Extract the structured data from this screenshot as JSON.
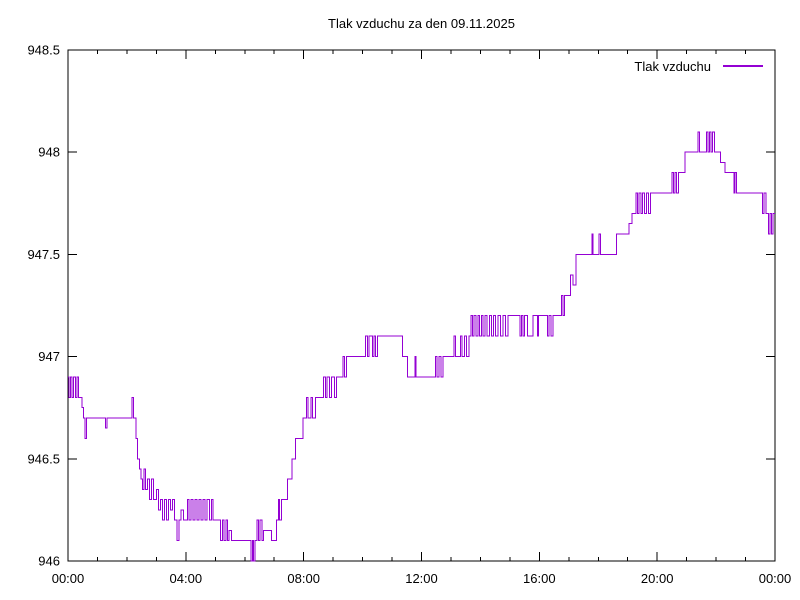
{
  "legend": {
    "label": "Tlak vzduchu"
  },
  "colors": {
    "line": "#9400d3",
    "axis": "#000000",
    "text": "#000000",
    "background": "#ffffff"
  },
  "chart_data": {
    "type": "line",
    "title": "Tlak vzduchu za den 09.11.2025",
    "xlabel": "",
    "ylabel": "",
    "x_unit": "time (hours of day)",
    "y_unit": "hPa",
    "xlim": [
      0,
      24
    ],
    "ylim": [
      946,
      948.5
    ],
    "grid": false,
    "legend_position": "top-right",
    "legend_entries": [
      "Tlak vzduchu"
    ],
    "x_ticks": [
      {
        "t": 0,
        "label": "00:00"
      },
      {
        "t": 4,
        "label": "04:00"
      },
      {
        "t": 8,
        "label": "08:00"
      },
      {
        "t": 12,
        "label": "12:00"
      },
      {
        "t": 16,
        "label": "16:00"
      },
      {
        "t": 20,
        "label": "20:00"
      },
      {
        "t": 24,
        "label": "00:00"
      }
    ],
    "x_minor_tick_every_hours": 1,
    "y_ticks": [
      {
        "v": 946,
        "label": "946"
      },
      {
        "v": 946.5,
        "label": "946.5"
      },
      {
        "v": 947,
        "label": "947"
      },
      {
        "v": 947.5,
        "label": "947.5"
      },
      {
        "v": 948,
        "label": "948"
      },
      {
        "v": 948.5,
        "label": "948.5"
      }
    ],
    "series": [
      {
        "name": "Tlak vzduchu",
        "color": "#9400d3",
        "style": "steps",
        "points": [
          [
            0.0,
            946.9
          ],
          [
            0.04,
            946.8
          ],
          [
            0.08,
            946.9
          ],
          [
            0.13,
            946.8
          ],
          [
            0.18,
            946.9
          ],
          [
            0.25,
            946.8
          ],
          [
            0.3,
            946.9
          ],
          [
            0.35,
            946.8
          ],
          [
            0.48,
            946.75
          ],
          [
            0.53,
            946.7
          ],
          [
            0.58,
            946.6
          ],
          [
            0.62,
            946.7
          ],
          [
            1.28,
            946.65
          ],
          [
            1.33,
            946.7
          ],
          [
            2.17,
            946.8
          ],
          [
            2.22,
            946.7
          ],
          [
            2.3,
            946.6
          ],
          [
            2.36,
            946.5
          ],
          [
            2.42,
            946.45
          ],
          [
            2.48,
            946.4
          ],
          [
            2.53,
            946.35
          ],
          [
            2.58,
            946.45
          ],
          [
            2.63,
            946.35
          ],
          [
            2.7,
            946.4
          ],
          [
            2.76,
            946.3
          ],
          [
            2.83,
            946.4
          ],
          [
            2.9,
            946.3
          ],
          [
            3.0,
            946.35
          ],
          [
            3.07,
            946.25
          ],
          [
            3.14,
            946.3
          ],
          [
            3.2,
            946.2
          ],
          [
            3.27,
            946.3
          ],
          [
            3.34,
            946.2
          ],
          [
            3.41,
            946.3
          ],
          [
            3.48,
            946.25
          ],
          [
            3.55,
            946.3
          ],
          [
            3.62,
            946.2
          ],
          [
            3.7,
            946.1
          ],
          [
            3.76,
            946.2
          ],
          [
            3.83,
            946.25
          ],
          [
            3.92,
            946.2
          ],
          [
            4.05,
            946.3
          ],
          [
            4.11,
            946.2
          ],
          [
            4.17,
            946.3
          ],
          [
            4.24,
            946.2
          ],
          [
            4.31,
            946.3
          ],
          [
            4.38,
            946.2
          ],
          [
            4.45,
            946.3
          ],
          [
            4.52,
            946.2
          ],
          [
            4.58,
            946.3
          ],
          [
            4.65,
            946.2
          ],
          [
            4.72,
            946.3
          ],
          [
            4.8,
            946.2
          ],
          [
            4.87,
            946.3
          ],
          [
            4.93,
            946.2
          ],
          [
            5.18,
            946.1
          ],
          [
            5.24,
            946.2
          ],
          [
            5.3,
            946.1
          ],
          [
            5.36,
            946.2
          ],
          [
            5.42,
            946.1
          ],
          [
            5.47,
            946.15
          ],
          [
            5.55,
            946.1
          ],
          [
            6.22,
            946.0
          ],
          [
            6.26,
            946.1
          ],
          [
            6.3,
            946.0
          ],
          [
            6.35,
            946.1
          ],
          [
            6.42,
            946.2
          ],
          [
            6.47,
            946.1
          ],
          [
            6.52,
            946.2
          ],
          [
            6.58,
            946.1
          ],
          [
            6.64,
            946.15
          ],
          [
            6.9,
            946.1
          ],
          [
            7.08,
            946.2
          ],
          [
            7.14,
            946.3
          ],
          [
            7.18,
            946.2
          ],
          [
            7.24,
            946.3
          ],
          [
            7.45,
            946.4
          ],
          [
            7.6,
            946.5
          ],
          [
            7.72,
            946.6
          ],
          [
            7.98,
            946.7
          ],
          [
            8.1,
            946.8
          ],
          [
            8.15,
            946.7
          ],
          [
            8.25,
            946.8
          ],
          [
            8.3,
            946.7
          ],
          [
            8.4,
            946.8
          ],
          [
            8.68,
            946.9
          ],
          [
            8.74,
            946.8
          ],
          [
            8.8,
            946.9
          ],
          [
            8.87,
            946.8
          ],
          [
            8.95,
            946.9
          ],
          [
            9.05,
            946.8
          ],
          [
            9.12,
            946.9
          ],
          [
            9.33,
            947.0
          ],
          [
            9.39,
            946.9
          ],
          [
            9.45,
            947.0
          ],
          [
            10.1,
            947.1
          ],
          [
            10.16,
            947.0
          ],
          [
            10.21,
            947.1
          ],
          [
            10.33,
            947.0
          ],
          [
            10.39,
            947.1
          ],
          [
            10.44,
            947.0
          ],
          [
            10.5,
            947.1
          ],
          [
            11.35,
            947.0
          ],
          [
            11.52,
            946.9
          ],
          [
            11.78,
            947.0
          ],
          [
            11.82,
            946.9
          ],
          [
            12.48,
            947.0
          ],
          [
            12.53,
            946.9
          ],
          [
            12.6,
            947.0
          ],
          [
            12.66,
            946.9
          ],
          [
            12.73,
            947.0
          ],
          [
            13.1,
            947.1
          ],
          [
            13.16,
            947.0
          ],
          [
            13.33,
            947.1
          ],
          [
            13.38,
            947.0
          ],
          [
            13.46,
            947.1
          ],
          [
            13.52,
            947.0
          ],
          [
            13.62,
            947.1
          ],
          [
            13.68,
            947.2
          ],
          [
            13.73,
            947.1
          ],
          [
            13.79,
            947.2
          ],
          [
            13.85,
            947.1
          ],
          [
            13.91,
            947.2
          ],
          [
            13.97,
            947.1
          ],
          [
            14.03,
            947.2
          ],
          [
            14.09,
            947.1
          ],
          [
            14.16,
            947.2
          ],
          [
            14.23,
            947.1
          ],
          [
            14.3,
            947.2
          ],
          [
            14.37,
            947.1
          ],
          [
            14.44,
            947.2
          ],
          [
            14.52,
            947.1
          ],
          [
            14.6,
            947.2
          ],
          [
            14.68,
            947.1
          ],
          [
            14.76,
            947.2
          ],
          [
            14.85,
            947.1
          ],
          [
            14.93,
            947.2
          ],
          [
            15.35,
            947.1
          ],
          [
            15.4,
            947.2
          ],
          [
            15.45,
            947.1
          ],
          [
            15.5,
            947.2
          ],
          [
            15.6,
            947.1
          ],
          [
            15.78,
            947.2
          ],
          [
            15.93,
            947.1
          ],
          [
            15.98,
            947.2
          ],
          [
            16.28,
            947.1
          ],
          [
            16.33,
            947.2
          ],
          [
            16.4,
            947.1
          ],
          [
            16.46,
            947.2
          ],
          [
            16.75,
            947.3
          ],
          [
            16.8,
            947.2
          ],
          [
            16.85,
            947.3
          ],
          [
            17.05,
            947.4
          ],
          [
            17.15,
            947.35
          ],
          [
            17.25,
            947.5
          ],
          [
            17.78,
            947.6
          ],
          [
            17.82,
            947.5
          ],
          [
            18.03,
            947.6
          ],
          [
            18.08,
            947.5
          ],
          [
            18.62,
            947.6
          ],
          [
            19.05,
            947.65
          ],
          [
            19.15,
            947.7
          ],
          [
            19.28,
            947.8
          ],
          [
            19.33,
            947.7
          ],
          [
            19.39,
            947.8
          ],
          [
            19.45,
            947.7
          ],
          [
            19.51,
            947.8
          ],
          [
            19.57,
            947.7
          ],
          [
            19.63,
            947.8
          ],
          [
            19.7,
            947.7
          ],
          [
            19.78,
            947.8
          ],
          [
            20.5,
            947.9
          ],
          [
            20.55,
            947.8
          ],
          [
            20.6,
            947.9
          ],
          [
            20.66,
            947.8
          ],
          [
            20.72,
            947.9
          ],
          [
            20.95,
            948.0
          ],
          [
            21.38,
            948.1
          ],
          [
            21.43,
            948.0
          ],
          [
            21.68,
            948.1
          ],
          [
            21.73,
            948.0
          ],
          [
            21.78,
            948.1
          ],
          [
            21.83,
            948.0
          ],
          [
            21.88,
            948.1
          ],
          [
            21.95,
            948.0
          ],
          [
            22.15,
            947.95
          ],
          [
            22.3,
            947.9
          ],
          [
            22.6,
            947.8
          ],
          [
            22.65,
            947.9
          ],
          [
            22.7,
            947.8
          ],
          [
            23.58,
            947.7
          ],
          [
            23.63,
            947.8
          ],
          [
            23.7,
            947.7
          ],
          [
            23.78,
            947.6
          ],
          [
            23.83,
            947.7
          ],
          [
            23.88,
            947.6
          ],
          [
            23.93,
            947.7
          ]
        ]
      }
    ]
  }
}
